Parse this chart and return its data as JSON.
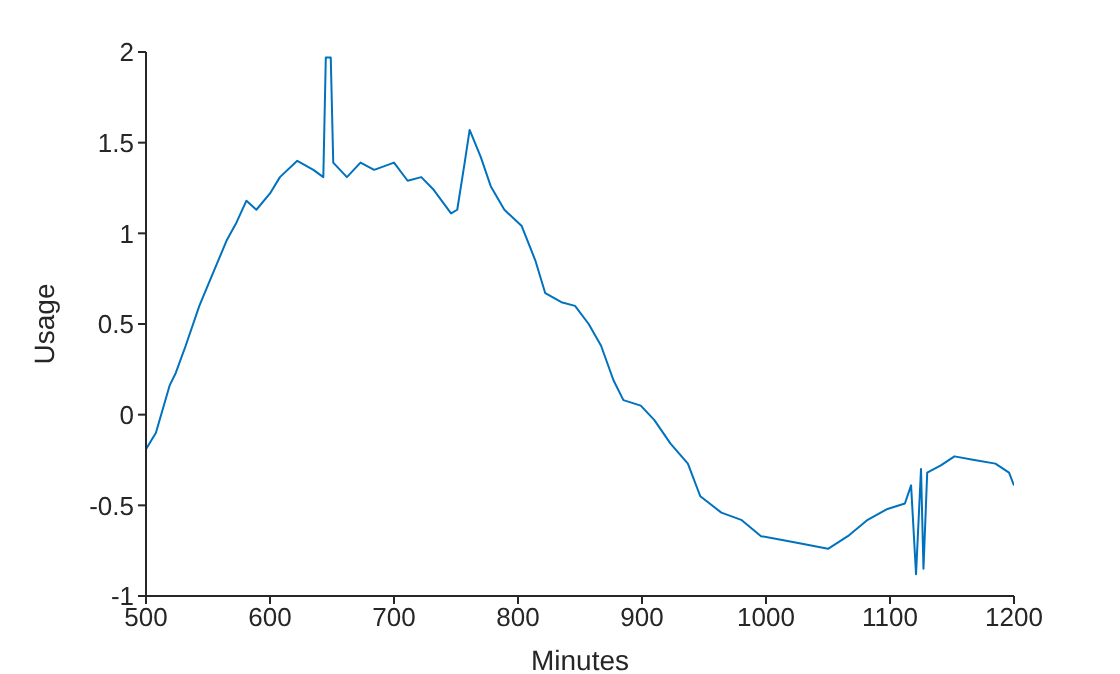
{
  "chart_data": {
    "type": "line",
    "xlabel": "Minutes",
    "ylabel": "Usage",
    "x": [
      500,
      508,
      519,
      524,
      532,
      543,
      554,
      565,
      573,
      581,
      589,
      600,
      608,
      622,
      635,
      643,
      645,
      649,
      651,
      662,
      673,
      684,
      700,
      711,
      722,
      732,
      746,
      751,
      757,
      761,
      770,
      778,
      789,
      803,
      814,
      822,
      835,
      846,
      857,
      867,
      877,
      885,
      899,
      910,
      923,
      937,
      947,
      964,
      980,
      996,
      1012,
      1028,
      1050,
      1066,
      1082,
      1098,
      1112,
      1117,
      1121,
      1125,
      1127,
      1130,
      1141,
      1152,
      1168,
      1185,
      1196,
      1200
    ],
    "series": [
      {
        "color": "#0072bd",
        "values": [
          -0.19,
          -0.1,
          0.16,
          0.23,
          0.38,
          0.6,
          0.78,
          0.96,
          1.06,
          1.18,
          1.13,
          1.22,
          1.31,
          1.4,
          1.35,
          1.31,
          1.97,
          1.97,
          1.39,
          1.31,
          1.39,
          1.35,
          1.39,
          1.29,
          1.31,
          1.24,
          1.11,
          1.13,
          1.39,
          1.57,
          1.42,
          1.26,
          1.13,
          1.04,
          0.85,
          0.67,
          0.62,
          0.6,
          0.5,
          0.38,
          0.19,
          0.08,
          0.05,
          -0.03,
          -0.16,
          -0.27,
          -0.45,
          -0.54,
          -0.58,
          -0.67,
          -0.69,
          -0.71,
          -0.74,
          -0.67,
          -0.58,
          -0.52,
          -0.49,
          -0.39,
          -0.88,
          -0.3,
          -0.85,
          -0.32,
          -0.28,
          -0.23,
          -0.25,
          -0.27,
          -0.32,
          -0.39
        ]
      }
    ],
    "xlim": [
      500,
      1200
    ],
    "xticks": [
      500,
      600,
      700,
      800,
      900,
      1000,
      1100,
      1200
    ],
    "ylim": [
      -1,
      2
    ],
    "yticks": [
      -1,
      -0.5,
      0,
      0.5,
      1,
      1.5,
      2
    ],
    "grid": false,
    "legend": false,
    "marker": "none",
    "line_style": "solid"
  }
}
